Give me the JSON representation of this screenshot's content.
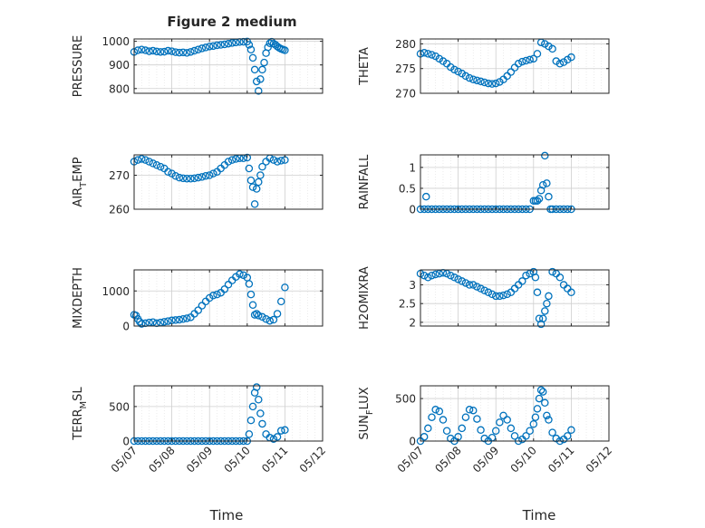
{
  "figure": {
    "title": "Figure 2 medium",
    "x_label": "Time"
  },
  "x_tick_labels": [
    "05/07",
    "05/08",
    "05/09",
    "05/10",
    "05/11",
    "05/12"
  ],
  "colors": {
    "marker": "#0072bd",
    "axis": "#262626",
    "grid": "#cfcfcf",
    "background": "#ffffff"
  },
  "chart_data": [
    {
      "type": "scatter",
      "title": "Figure 2 medium",
      "ylabel": "PRESSURE",
      "ylabel_sub": "",
      "xlabel": "",
      "xlim": [
        0,
        5
      ],
      "ylim": [
        780,
        1010
      ],
      "yticks": [
        800,
        900,
        1000
      ],
      "ytick_labels": [
        "800",
        "900",
        "1000"
      ],
      "grid": true,
      "series": [
        {
          "x": [
            0.0,
            0.1,
            0.2,
            0.3,
            0.4,
            0.5,
            0.6,
            0.7,
            0.8,
            0.9,
            1.0,
            1.1,
            1.2,
            1.3,
            1.4,
            1.5,
            1.6,
            1.7,
            1.8,
            1.9,
            2.0,
            2.1,
            2.2,
            2.3,
            2.4,
            2.5,
            2.6,
            2.7,
            2.8,
            2.9,
            3.0,
            3.05,
            3.1,
            3.15,
            3.2,
            3.25,
            3.3,
            3.35,
            3.4,
            3.45,
            3.5,
            3.55,
            3.6,
            3.65,
            3.7,
            3.75,
            3.8,
            3.85,
            3.9,
            3.95,
            4.0
          ],
          "y": [
            955,
            962,
            965,
            962,
            958,
            960,
            957,
            955,
            956,
            960,
            958,
            954,
            952,
            953,
            951,
            955,
            960,
            965,
            970,
            974,
            978,
            980,
            983,
            985,
            987,
            990,
            993,
            995,
            997,
            998,
            999,
            985,
            965,
            930,
            880,
            830,
            790,
            840,
            880,
            910,
            950,
            975,
            992,
            998,
            990,
            985,
            978,
            972,
            968,
            965,
            962
          ]
        }
      ]
    },
    {
      "type": "scatter",
      "title": "",
      "ylabel": "THETA",
      "ylabel_sub": "",
      "xlabel": "",
      "xlim": [
        0,
        5
      ],
      "ylim": [
        270,
        281
      ],
      "yticks": [
        270,
        275,
        280
      ],
      "ytick_labels": [
        "270",
        "275",
        "280"
      ],
      "grid": true,
      "series": [
        {
          "x": [
            0.0,
            0.1,
            0.2,
            0.3,
            0.4,
            0.5,
            0.6,
            0.7,
            0.8,
            0.9,
            1.0,
            1.1,
            1.2,
            1.3,
            1.4,
            1.5,
            1.6,
            1.7,
            1.8,
            1.9,
            2.0,
            2.1,
            2.2,
            2.3,
            2.4,
            2.5,
            2.6,
            2.7,
            2.8,
            2.9,
            3.0,
            3.1,
            3.2,
            3.3,
            3.4,
            3.5,
            3.6,
            3.7,
            3.8,
            3.9,
            4.0
          ],
          "y": [
            278,
            278.2,
            278,
            277.8,
            277.5,
            277,
            276.5,
            276,
            275.3,
            274.8,
            274.4,
            274,
            273.5,
            273.1,
            272.8,
            272.6,
            272.4,
            272.2,
            272,
            271.9,
            272,
            272.3,
            272.8,
            273.5,
            274.3,
            275.2,
            276,
            276.4,
            276.6,
            276.8,
            277,
            278,
            280.3,
            280,
            279.5,
            279,
            276.5,
            276,
            276.3,
            276.8,
            277.3
          ]
        }
      ]
    },
    {
      "type": "scatter",
      "title": "",
      "ylabel": "AIR",
      "ylabel_sub": "T",
      "ylabel_tail": "EMP",
      "xlabel": "",
      "xlim": [
        0,
        5
      ],
      "ylim": [
        260,
        276
      ],
      "yticks": [
        260,
        270
      ],
      "ytick_labels": [
        "260",
        "270"
      ],
      "grid": true,
      "series": [
        {
          "x": [
            0.0,
            0.1,
            0.2,
            0.3,
            0.4,
            0.5,
            0.6,
            0.7,
            0.8,
            0.9,
            1.0,
            1.1,
            1.2,
            1.3,
            1.4,
            1.5,
            1.6,
            1.7,
            1.8,
            1.9,
            2.0,
            2.1,
            2.2,
            2.3,
            2.4,
            2.5,
            2.6,
            2.7,
            2.8,
            2.9,
            3.0,
            3.05,
            3.1,
            3.15,
            3.2,
            3.25,
            3.3,
            3.35,
            3.4,
            3.5,
            3.6,
            3.7,
            3.8,
            3.9,
            4.0
          ],
          "y": [
            274,
            274.5,
            274.8,
            274.5,
            274,
            273.5,
            273,
            272.5,
            272,
            271,
            270.5,
            269.8,
            269.3,
            269.1,
            269,
            269,
            269.1,
            269.3,
            269.5,
            269.8,
            270,
            270.5,
            271,
            272,
            273,
            274,
            274.5,
            274.8,
            275,
            275,
            275.2,
            272,
            268.5,
            266.5,
            261.5,
            266,
            268,
            270,
            272.5,
            274,
            275,
            274.5,
            274,
            274.3,
            274.5
          ]
        }
      ]
    },
    {
      "type": "scatter",
      "title": "",
      "ylabel": "RAINFALL",
      "ylabel_sub": "",
      "xlabel": "",
      "xlim": [
        0,
        5
      ],
      "ylim": [
        0,
        1.3
      ],
      "yticks": [
        0,
        0.5,
        1
      ],
      "ytick_labels": [
        "0",
        "0.5",
        "1"
      ],
      "grid": true,
      "series": [
        {
          "x": [
            0.0,
            0.1,
            0.15,
            0.2,
            0.3,
            0.4,
            0.5,
            0.6,
            0.7,
            0.8,
            0.9,
            1.0,
            1.1,
            1.2,
            1.3,
            1.4,
            1.5,
            1.6,
            1.7,
            1.8,
            1.9,
            2.0,
            2.1,
            2.2,
            2.3,
            2.4,
            2.5,
            2.6,
            2.7,
            2.8,
            2.9,
            3.0,
            3.05,
            3.1,
            3.15,
            3.2,
            3.25,
            3.3,
            3.35,
            3.4,
            3.45,
            3.5,
            3.6,
            3.7,
            3.8,
            3.9,
            4.0
          ],
          "y": [
            0,
            0,
            0.3,
            0,
            0,
            0,
            0,
            0,
            0,
            0,
            0,
            0,
            0,
            0,
            0,
            0,
            0,
            0,
            0,
            0,
            0,
            0,
            0,
            0,
            0,
            0,
            0,
            0,
            0,
            0,
            0,
            0.2,
            0.2,
            0.2,
            0.25,
            0.45,
            0.58,
            1.28,
            0.62,
            0.3,
            0,
            0,
            0,
            0,
            0,
            0,
            0
          ]
        }
      ]
    },
    {
      "type": "scatter",
      "title": "",
      "ylabel": "MIXDEPTH",
      "ylabel_sub": "",
      "xlabel": "",
      "xlim": [
        0,
        5
      ],
      "ylim": [
        0,
        1600
      ],
      "yticks": [
        0,
        1000
      ],
      "ytick_labels": [
        "0",
        "1000"
      ],
      "grid": true,
      "series": [
        {
          "x": [
            0.0,
            0.05,
            0.1,
            0.15,
            0.2,
            0.3,
            0.4,
            0.5,
            0.6,
            0.7,
            0.8,
            0.9,
            1.0,
            1.1,
            1.2,
            1.3,
            1.4,
            1.5,
            1.6,
            1.7,
            1.8,
            1.9,
            2.0,
            2.1,
            2.2,
            2.3,
            2.4,
            2.5,
            2.6,
            2.7,
            2.8,
            2.9,
            3.0,
            3.05,
            3.1,
            3.15,
            3.2,
            3.25,
            3.3,
            3.4,
            3.5,
            3.6,
            3.7,
            3.8,
            3.9,
            4.0
          ],
          "y": [
            320,
            300,
            200,
            120,
            60,
            80,
            100,
            110,
            80,
            100,
            120,
            140,
            160,
            170,
            180,
            200,
            220,
            250,
            350,
            450,
            580,
            700,
            800,
            870,
            900,
            950,
            1050,
            1180,
            1300,
            1400,
            1480,
            1450,
            1380,
            1200,
            900,
            600,
            320,
            350,
            300,
            260,
            200,
            150,
            180,
            350,
            700,
            1100
          ]
        }
      ]
    },
    {
      "type": "scatter",
      "title": "",
      "ylabel": "H2OMIXRA",
      "ylabel_sub": "",
      "xlabel": "",
      "xlim": [
        0,
        5
      ],
      "ylim": [
        1.9,
        3.4
      ],
      "yticks": [
        2,
        2.5,
        3
      ],
      "ytick_labels": [
        "2",
        "2.5",
        "3"
      ],
      "grid": true,
      "series": [
        {
          "x": [
            0.0,
            0.1,
            0.2,
            0.3,
            0.4,
            0.5,
            0.6,
            0.7,
            0.8,
            0.9,
            1.0,
            1.1,
            1.2,
            1.3,
            1.4,
            1.5,
            1.6,
            1.7,
            1.8,
            1.9,
            2.0,
            2.1,
            2.2,
            2.3,
            2.4,
            2.5,
            2.6,
            2.7,
            2.8,
            2.9,
            3.0,
            3.05,
            3.1,
            3.15,
            3.2,
            3.25,
            3.3,
            3.35,
            3.4,
            3.5,
            3.6,
            3.7,
            3.8,
            3.9,
            4.0
          ],
          "y": [
            3.3,
            3.25,
            3.2,
            3.25,
            3.28,
            3.3,
            3.32,
            3.3,
            3.25,
            3.2,
            3.15,
            3.1,
            3.05,
            3.0,
            3.0,
            2.95,
            2.9,
            2.85,
            2.8,
            2.75,
            2.7,
            2.7,
            2.72,
            2.75,
            2.8,
            2.9,
            3.0,
            3.1,
            3.25,
            3.3,
            3.35,
            3.2,
            2.8,
            2.1,
            1.95,
            2.1,
            2.3,
            2.5,
            2.7,
            3.35,
            3.3,
            3.2,
            3.0,
            2.9,
            2.8
          ]
        }
      ]
    },
    {
      "type": "scatter",
      "title": "",
      "ylabel": "TERR",
      "ylabel_sub": "M",
      "ylabel_tail": "SL",
      "xlabel": "",
      "xlim": [
        0,
        5
      ],
      "ylim": [
        0,
        800
      ],
      "yticks": [
        0,
        500
      ],
      "ytick_labels": [
        "0",
        "500"
      ],
      "grid": true,
      "series": [
        {
          "x": [
            0.0,
            0.1,
            0.2,
            0.3,
            0.4,
            0.5,
            0.6,
            0.7,
            0.8,
            0.9,
            1.0,
            1.1,
            1.2,
            1.3,
            1.4,
            1.5,
            1.6,
            1.7,
            1.8,
            1.9,
            2.0,
            2.1,
            2.2,
            2.3,
            2.4,
            2.5,
            2.6,
            2.7,
            2.8,
            2.9,
            3.0,
            3.05,
            3.1,
            3.15,
            3.2,
            3.25,
            3.3,
            3.35,
            3.4,
            3.5,
            3.6,
            3.7,
            3.8,
            3.9,
            4.0
          ],
          "y": [
            0,
            0,
            0,
            0,
            0,
            0,
            0,
            0,
            0,
            0,
            0,
            0,
            0,
            0,
            0,
            0,
            0,
            0,
            0,
            0,
            0,
            0,
            0,
            0,
            0,
            0,
            0,
            0,
            0,
            0,
            0,
            100,
            300,
            500,
            700,
            780,
            600,
            400,
            250,
            100,
            50,
            30,
            60,
            150,
            160
          ]
        }
      ]
    },
    {
      "type": "scatter",
      "title": "",
      "ylabel": "SUN",
      "ylabel_sub": "F",
      "ylabel_tail": "LUX",
      "xlabel": "",
      "xlim": [
        0,
        5
      ],
      "ylim": [
        0,
        650
      ],
      "yticks": [
        0,
        500
      ],
      "ytick_labels": [
        "0",
        "500"
      ],
      "grid": true,
      "series": [
        {
          "x": [
            0.0,
            0.1,
            0.2,
            0.3,
            0.4,
            0.5,
            0.6,
            0.7,
            0.8,
            0.9,
            1.0,
            1.1,
            1.2,
            1.3,
            1.4,
            1.5,
            1.6,
            1.7,
            1.8,
            1.9,
            2.0,
            2.1,
            2.2,
            2.3,
            2.4,
            2.5,
            2.6,
            2.7,
            2.8,
            2.9,
            3.0,
            3.05,
            3.1,
            3.15,
            3.2,
            3.25,
            3.3,
            3.35,
            3.4,
            3.5,
            3.6,
            3.7,
            3.8,
            3.9,
            4.0
          ],
          "y": [
            0,
            50,
            150,
            280,
            370,
            350,
            250,
            120,
            30,
            0,
            50,
            150,
            280,
            370,
            360,
            260,
            130,
            30,
            0,
            40,
            120,
            220,
            300,
            250,
            150,
            60,
            0,
            20,
            60,
            120,
            200,
            280,
            380,
            500,
            600,
            580,
            450,
            300,
            250,
            100,
            30,
            0,
            20,
            60,
            130
          ]
        }
      ]
    }
  ]
}
